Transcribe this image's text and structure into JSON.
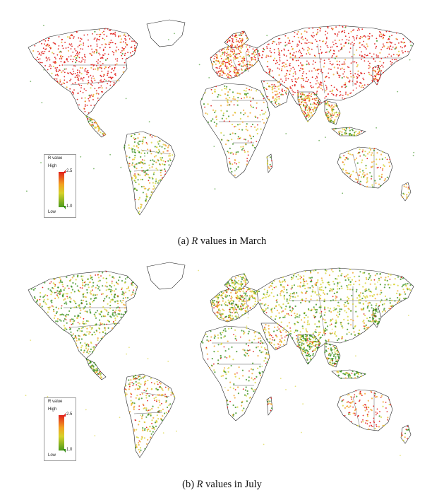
{
  "figure": {
    "panels": [
      {
        "id": "a",
        "caption_prefix": "(a) ",
        "caption_var": "R",
        "caption_rest": " values in March",
        "legend": {
          "title": "R value",
          "high_label": "High",
          "low_label": "Low",
          "max_value": "2.5",
          "min_value": "1.0"
        },
        "dominant": "red"
      },
      {
        "id": "b",
        "caption_prefix": "(b) ",
        "caption_var": "R",
        "caption_rest": " values in July",
        "legend": {
          "title": "R value",
          "high_label": "High",
          "low_label": "Low",
          "max_value": "2.5",
          "min_value": "1.0"
        },
        "dominant": "green"
      }
    ],
    "colors": {
      "high": "#e0201c",
      "mid": "#f2a020",
      "mid2": "#d6d12a",
      "low": "#2f8a12",
      "outline": "#222222"
    }
  }
}
